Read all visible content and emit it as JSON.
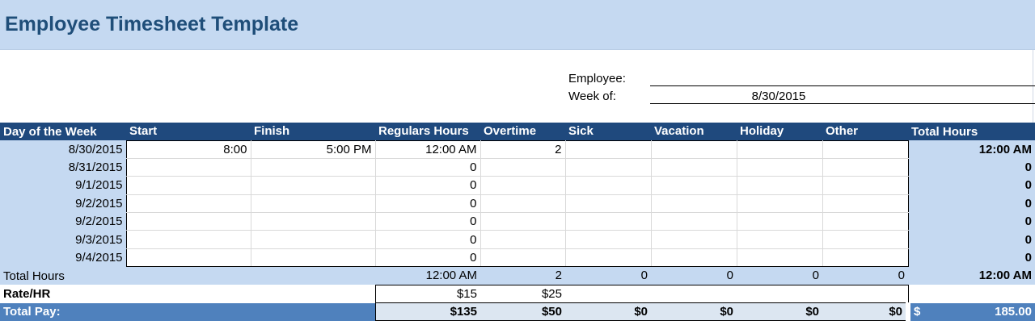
{
  "title": "Employee Timesheet Template",
  "meta": {
    "employee_label": "Employee:",
    "employee_value": "",
    "week_label": "Week of:",
    "week_value": "8/30/2015"
  },
  "columns": [
    "Day of the Week",
    "Start",
    "Finish",
    "Regulars Hours",
    "Overtime",
    "Sick",
    "Vacation",
    "Holiday",
    "Other",
    "Total Hours"
  ],
  "rows": [
    {
      "day": "8/30/2015",
      "start": "8:00",
      "finish": "5:00 PM",
      "regular": "12:00 AM",
      "overtime": "2",
      "sick": "",
      "vacation": "",
      "holiday": "",
      "other": "",
      "total": "12:00 AM"
    },
    {
      "day": "8/31/2015",
      "start": "",
      "finish": "",
      "regular": "0",
      "overtime": "",
      "sick": "",
      "vacation": "",
      "holiday": "",
      "other": "",
      "total": "0"
    },
    {
      "day": "9/1/2015",
      "start": "",
      "finish": "",
      "regular": "0",
      "overtime": "",
      "sick": "",
      "vacation": "",
      "holiday": "",
      "other": "",
      "total": "0"
    },
    {
      "day": "9/2/2015",
      "start": "",
      "finish": "",
      "regular": "0",
      "overtime": "",
      "sick": "",
      "vacation": "",
      "holiday": "",
      "other": "",
      "total": "0"
    },
    {
      "day": "9/2/2015",
      "start": "",
      "finish": "",
      "regular": "0",
      "overtime": "",
      "sick": "",
      "vacation": "",
      "holiday": "",
      "other": "",
      "total": "0"
    },
    {
      "day": "9/3/2015",
      "start": "",
      "finish": "",
      "regular": "0",
      "overtime": "",
      "sick": "",
      "vacation": "",
      "holiday": "",
      "other": "",
      "total": "0"
    },
    {
      "day": "9/4/2015",
      "start": "",
      "finish": "",
      "regular": "0",
      "overtime": "",
      "sick": "",
      "vacation": "",
      "holiday": "",
      "other": "",
      "total": "0"
    }
  ],
  "totals": {
    "label": "Total Hours",
    "regular": "12:00 AM",
    "overtime": "2",
    "sick": "0",
    "vacation": "0",
    "holiday": "0",
    "other": "0",
    "total": "12:00 AM"
  },
  "rate": {
    "label": "Rate/HR",
    "regular": "$15",
    "overtime": "$25"
  },
  "pay": {
    "label": "Total Pay:",
    "regular": "$135",
    "overtime": "$50",
    "sick": "$0",
    "vacation": "$0",
    "holiday": "$0",
    "other": "$0",
    "total_symbol": "$",
    "total": "185.00"
  }
}
